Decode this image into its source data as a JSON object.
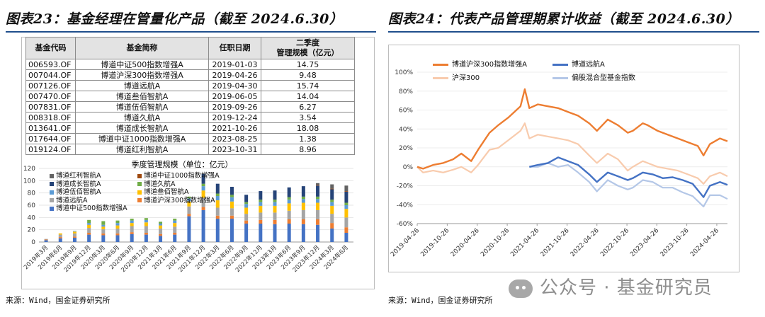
{
  "left": {
    "figure_title": "图表23：基金经理在管量化产品（截至 2024.6.30）",
    "source": "来源：Wind，国金证券研究所",
    "table": {
      "headers": [
        "基金代码",
        "基金简称",
        "任职日期",
        "二季度\n管理规模（亿元）"
      ],
      "rows": [
        [
          "006593.OF",
          "博道中证500指数增强A",
          "2019-01-03",
          "14.75"
        ],
        [
          "007044.OF",
          "博道沪深300指数增强A",
          "2019-04-26",
          "9.48"
        ],
        [
          "007126.OF",
          "博道远航A",
          "2019-04-30",
          "15.74"
        ],
        [
          "007470.OF",
          "博道叁佰智航A",
          "2019-06-05",
          "14.04"
        ],
        [
          "007831.OF",
          "博道伍佰智航A",
          "2019-09-26",
          "6.27"
        ],
        [
          "008318.OF",
          "博道久航A",
          "2019-12-24",
          "3.54"
        ],
        [
          "013641.OF",
          "博道成长智航A",
          "2021-10-26",
          "18.08"
        ],
        [
          "017644.OF",
          "博道中证1000指数增强A",
          "2023-08-25",
          "1.38"
        ],
        [
          "019124.OF",
          "博道红利智航A",
          "2023-10-31",
          "8.96"
        ]
      ]
    }
  },
  "right": {
    "figure_title": "图表24：代表产品管理期累计收益（截至 2024.6.30）",
    "source": "来源：Wind，国金证券研究所"
  },
  "watermark": "公众号 · 基金研究员",
  "chart_data": [
    {
      "type": "bar",
      "stacked": true,
      "title": "季度管理规模（单位：亿元）",
      "ylim": [
        0,
        120
      ],
      "yticks": [
        0,
        20,
        40,
        60,
        80,
        100,
        120
      ],
      "categories": [
        "2019年3月",
        "2019年6月",
        "2019年9月",
        "2019年12月",
        "2020年3月",
        "2020年6月",
        "2020年9月",
        "2020年12月",
        "2021年3月",
        "2021年6月",
        "2021年9月",
        "2021年12月",
        "2022年3月",
        "2022年6月",
        "2022年9月",
        "2022年12月",
        "2023年3月",
        "2023年6月",
        "2023年9月",
        "2023年12月",
        "2024年3月",
        "2024年6月"
      ],
      "legend_order": [
        "博道红利智航A",
        "博道中证1000指数增强A",
        "博道成长智航A",
        "博道久航A",
        "博道伍佰智航A",
        "博道叁佰智航A",
        "博道远航A",
        "博道沪深300指数增强A",
        "博道中证500指数增强A"
      ],
      "series": [
        {
          "name": "博道中证500指数增强A",
          "color": "#4472c4",
          "values": [
            3,
            6,
            7,
            12,
            11,
            11,
            13,
            12,
            10,
            12,
            42,
            52,
            38,
            38,
            30,
            30,
            29,
            30,
            29,
            28,
            22,
            15
          ]
        },
        {
          "name": "博道沪深300指数增强A",
          "color": "#ed7d31",
          "values": [
            1,
            2,
            2,
            3,
            3,
            3,
            3,
            3,
            3,
            3,
            4,
            5,
            5,
            5,
            5,
            6,
            7,
            7,
            8,
            9,
            9,
            9
          ]
        },
        {
          "name": "博道远航A",
          "color": "#a5a5a5",
          "values": [
            1,
            4,
            5,
            8,
            7,
            8,
            10,
            11,
            9,
            10,
            12,
            15,
            13,
            12,
            11,
            12,
            12,
            14,
            15,
            15,
            15,
            16
          ]
        },
        {
          "name": "博道叁佰智航A",
          "color": "#ffc000",
          "values": [
            0,
            2,
            3,
            5,
            4,
            5,
            5,
            6,
            5,
            6,
            8,
            12,
            12,
            11,
            10,
            11,
            11,
            12,
            12,
            12,
            13,
            14
          ]
        },
        {
          "name": "博道伍佰智航A",
          "color": "#5b9bd5",
          "values": [
            0,
            0,
            1,
            3,
            3,
            4,
            4,
            4,
            3,
            4,
            5,
            7,
            7,
            7,
            6,
            6,
            6,
            6,
            6,
            6,
            6,
            6
          ]
        },
        {
          "name": "博道久航A",
          "color": "#70ad47",
          "values": [
            0,
            0,
            0,
            5,
            6,
            4,
            3,
            3,
            3,
            3,
            3,
            4,
            4,
            4,
            3,
            4,
            4,
            4,
            4,
            4,
            4,
            4
          ]
        },
        {
          "name": "博道成长智航A",
          "color": "#264478",
          "values": [
            0,
            0,
            0,
            0,
            0,
            0,
            0,
            0,
            0,
            0,
            0,
            16,
            16,
            13,
            12,
            14,
            15,
            16,
            17,
            18,
            17,
            18
          ]
        },
        {
          "name": "博道中证1000指数增强A",
          "color": "#9e480e",
          "values": [
            0,
            0,
            0,
            0,
            0,
            0,
            0,
            0,
            0,
            0,
            0,
            0,
            0,
            0,
            0,
            0,
            0,
            0,
            0,
            1,
            1,
            1
          ]
        },
        {
          "name": "博道红利智航A",
          "color": "#636363",
          "values": [
            0,
            0,
            0,
            0,
            0,
            0,
            0,
            0,
            0,
            0,
            0,
            0,
            0,
            0,
            0,
            0,
            0,
            0,
            0,
            3,
            7,
            9
          ]
        }
      ]
    },
    {
      "type": "line",
      "ylim": [
        -0.6,
        1.0
      ],
      "yticks": [
        -0.6,
        -0.4,
        -0.2,
        0,
        0.2,
        0.4,
        0.6,
        0.8,
        1.0
      ],
      "yticklabels": [
        "-60%",
        "-40%",
        "-20%",
        "0%",
        "20%",
        "40%",
        "60%",
        "80%",
        "100%"
      ],
      "xlim": [
        "2019-04-26",
        "2024-06-30"
      ],
      "xticklabels": [
        "2019-04-26",
        "2019-10-26",
        "2020-04-26",
        "2020-10-26",
        "2021-04-26",
        "2021-10-26",
        "2022-04-26",
        "2022-10-26",
        "2023-04-26",
        "2023-10-26",
        "2024-04-26"
      ],
      "legend": "top",
      "series": [
        {
          "name": "博道沪深300指数增强A",
          "color": "#ed7d31",
          "width": 2.4,
          "x": [
            "2019-04-26",
            "2019-06-01",
            "2019-08-01",
            "2019-10-01",
            "2019-12-01",
            "2020-01-20",
            "2020-03-20",
            "2020-05-01",
            "2020-07-10",
            "2020-09-01",
            "2020-11-01",
            "2021-01-15",
            "2021-02-10",
            "2021-03-10",
            "2021-05-01",
            "2021-07-01",
            "2021-09-01",
            "2021-11-01",
            "2022-01-01",
            "2022-03-10",
            "2022-04-26",
            "2022-07-01",
            "2022-09-01",
            "2022-10-31",
            "2022-12-01",
            "2023-01-31",
            "2023-03-01",
            "2023-05-01",
            "2023-07-01",
            "2023-09-01",
            "2023-11-01",
            "2024-01-01",
            "2024-02-05",
            "2024-03-15",
            "2024-05-15",
            "2024-06-30"
          ],
          "values": [
            0,
            -0.02,
            0.02,
            0.04,
            0.08,
            0.14,
            0.06,
            0.18,
            0.36,
            0.44,
            0.52,
            0.64,
            0.82,
            0.62,
            0.66,
            0.64,
            0.62,
            0.58,
            0.54,
            0.46,
            0.38,
            0.5,
            0.44,
            0.36,
            0.38,
            0.46,
            0.44,
            0.38,
            0.34,
            0.3,
            0.26,
            0.22,
            0.12,
            0.24,
            0.3,
            0.27
          ]
        },
        {
          "name": "博道远航A",
          "color": "#4472c4",
          "width": 2.4,
          "x": [
            "2021-03-10",
            "2021-05-01",
            "2021-07-01",
            "2021-09-01",
            "2021-11-01",
            "2022-01-01",
            "2022-03-10",
            "2022-04-26",
            "2022-07-01",
            "2022-09-01",
            "2022-10-31",
            "2022-12-01",
            "2023-01-31",
            "2023-04-01",
            "2023-06-01",
            "2023-08-01",
            "2023-10-01",
            "2023-12-01",
            "2024-02-05",
            "2024-03-15",
            "2024-05-15",
            "2024-06-30"
          ],
          "values": [
            0,
            0.02,
            0.04,
            0.1,
            0.06,
            0.02,
            -0.08,
            -0.16,
            -0.06,
            -0.1,
            -0.14,
            -0.12,
            -0.06,
            -0.08,
            -0.12,
            -0.11,
            -0.14,
            -0.18,
            -0.32,
            -0.2,
            -0.16,
            -0.19
          ]
        },
        {
          "name": "沪深300",
          "color": "#f8cbad",
          "width": 2.2,
          "x": [
            "2019-04-26",
            "2019-06-01",
            "2019-08-01",
            "2019-10-01",
            "2019-12-01",
            "2020-01-20",
            "2020-03-20",
            "2020-05-01",
            "2020-07-10",
            "2020-09-01",
            "2020-11-01",
            "2021-01-15",
            "2021-02-10",
            "2021-03-10",
            "2021-05-01",
            "2021-07-01",
            "2021-09-01",
            "2021-11-01",
            "2022-01-01",
            "2022-03-10",
            "2022-04-26",
            "2022-07-01",
            "2022-09-01",
            "2022-10-31",
            "2022-12-01",
            "2023-01-31",
            "2023-03-01",
            "2023-05-01",
            "2023-07-01",
            "2023-09-01",
            "2023-11-01",
            "2024-01-01",
            "2024-02-05",
            "2024-03-15",
            "2024-05-15",
            "2024-06-30"
          ],
          "values": [
            0,
            -0.06,
            -0.04,
            -0.06,
            -0.03,
            0.0,
            -0.06,
            0.02,
            0.18,
            0.2,
            0.28,
            0.38,
            0.46,
            0.3,
            0.34,
            0.32,
            0.3,
            0.28,
            0.24,
            0.12,
            0.04,
            0.14,
            0.08,
            -0.04,
            0.0,
            0.06,
            0.04,
            0.0,
            -0.02,
            -0.04,
            -0.08,
            -0.12,
            -0.18,
            -0.1,
            -0.06,
            -0.1
          ]
        },
        {
          "name": "偏股混合型基金指数",
          "color": "#b4c7e7",
          "width": 2.2,
          "x": [
            "2021-03-10",
            "2021-05-01",
            "2021-07-01",
            "2021-09-01",
            "2021-11-01",
            "2022-01-01",
            "2022-03-10",
            "2022-04-26",
            "2022-07-01",
            "2022-09-01",
            "2022-10-31",
            "2022-12-01",
            "2023-01-31",
            "2023-04-01",
            "2023-06-01",
            "2023-08-01",
            "2023-10-01",
            "2023-12-01",
            "2024-02-05",
            "2024-03-15",
            "2024-05-15",
            "2024-06-30"
          ],
          "values": [
            0,
            0.0,
            0.04,
            0.0,
            0.02,
            -0.06,
            -0.16,
            -0.26,
            -0.14,
            -0.2,
            -0.24,
            -0.22,
            -0.14,
            -0.16,
            -0.22,
            -0.22,
            -0.27,
            -0.31,
            -0.42,
            -0.3,
            -0.3,
            -0.34
          ]
        }
      ]
    }
  ]
}
